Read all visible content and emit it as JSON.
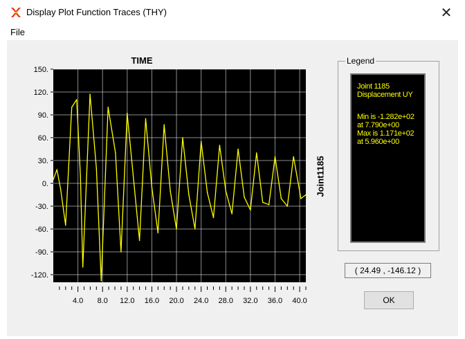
{
  "window": {
    "title": "Display Plot Function Traces  (THY)",
    "app_icon": "sap2000-icon",
    "close_label": "✕"
  },
  "menu": {
    "file_label": "File"
  },
  "plot": {
    "x_axis_title": "TIME",
    "y_axis_title": "Joint1185",
    "coordinate_readout": "( 24.49 , -146.12 )"
  },
  "legend": {
    "group_label": "Legend",
    "lines": [
      "Joint 1185",
      "Displacement  UY",
      "Min is -1.282e+02",
      "at 7.790e+00",
      "Max is 1.171e+02",
      "at 5.960e+00"
    ]
  },
  "buttons": {
    "ok_label": "OK"
  },
  "colors": {
    "plot_background": "#000000",
    "trace": "#ffff00",
    "grid": "#ffffff",
    "legend_text": "#ffff00"
  },
  "chart_data": {
    "type": "line",
    "title": "TIME",
    "xlabel": "TIME",
    "ylabel": "Joint1185",
    "xlim": [
      0,
      41
    ],
    "ylim": [
      -130,
      150
    ],
    "xticks": [
      4.0,
      8.0,
      12.0,
      16.0,
      20.0,
      24.0,
      28.0,
      32.0,
      36.0,
      40.0
    ],
    "xtick_labels": [
      "4.0",
      "8.0",
      "12.0",
      "16.0",
      "20.0",
      "24.0",
      "28.0",
      "32.0",
      "36.0",
      "40.0"
    ],
    "yticks": [
      150,
      120,
      90,
      60,
      30,
      0,
      -30,
      -60,
      -90,
      -120
    ],
    "ytick_labels": [
      "150.",
      "120.",
      "90.",
      "60.",
      "30.",
      "0.",
      "-30.",
      "-60.",
      "-90.",
      "-120."
    ],
    "grid": true,
    "series": [
      {
        "color": "#ffff00",
        "x": [
          0.0,
          0.6,
          1.2,
          2.0,
          3.0,
          3.8,
          4.4,
          4.8,
          5.96,
          7.0,
          7.79,
          8.9,
          10.1,
          11.0,
          12.0,
          13.1,
          14.0,
          15.0,
          16.0,
          17.0,
          18.0,
          19.0,
          20.0,
          21.0,
          22.0,
          23.0,
          24.0,
          25.0,
          26.0,
          27.0,
          28.0,
          29.0,
          30.0,
          31.0,
          32.0,
          33.0,
          34.0,
          35.0,
          36.0,
          37.0,
          38.0,
          39.0,
          40.2,
          41.0
        ],
        "y": [
          5,
          18,
          -8,
          -55,
          100,
          110,
          10,
          -110,
          117,
          20,
          -128,
          100,
          40,
          -90,
          92,
          0,
          -75,
          85,
          -5,
          -65,
          77,
          -10,
          -60,
          60,
          -15,
          -60,
          55,
          -12,
          -45,
          50,
          -10,
          -40,
          45,
          -18,
          -35,
          40,
          -25,
          -28,
          35,
          -20,
          -30,
          35,
          -20,
          -15
        ]
      }
    ]
  }
}
